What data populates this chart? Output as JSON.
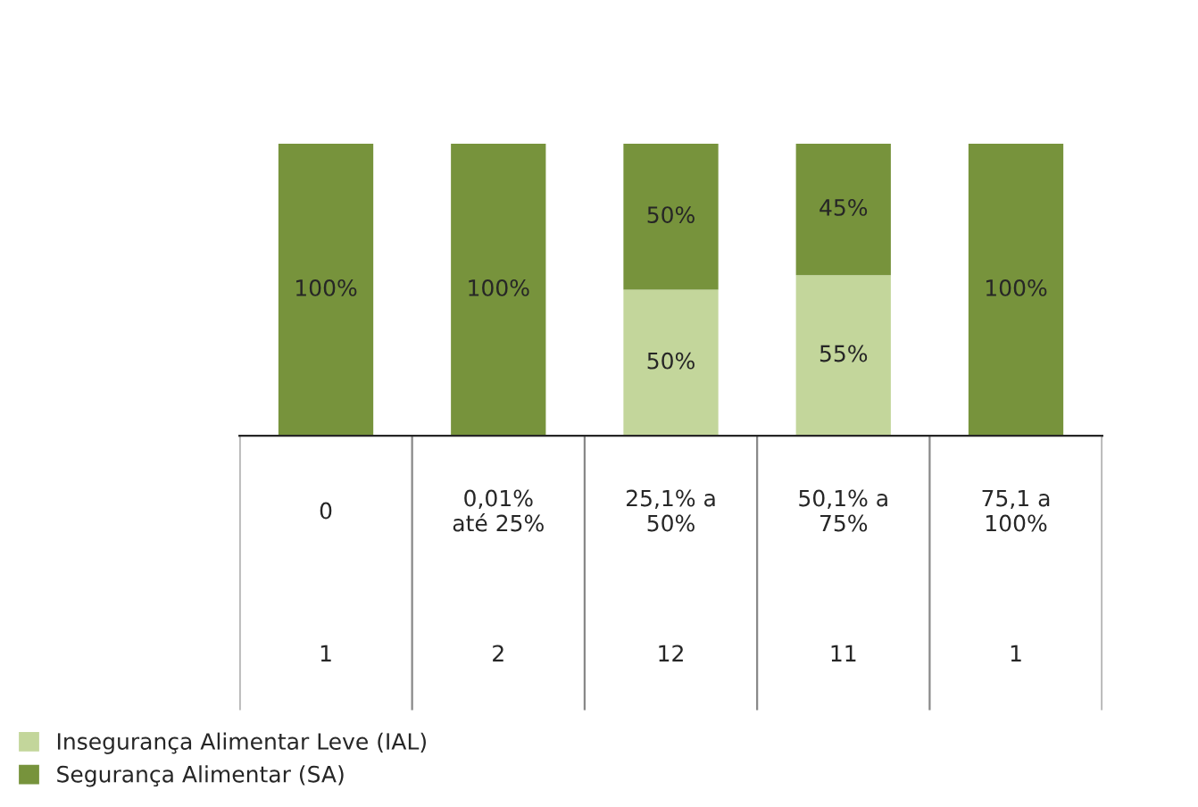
{
  "chart_data": {
    "type": "bar",
    "stacked": true,
    "categories": [
      "0",
      "0,01%\naté 25%",
      "25,1% a\n50%",
      "50,1% a\n75%",
      "75,1 a\n100%"
    ],
    "series": [
      {
        "name": "Insegurança Alimentar Leve (IAL)",
        "color": "#c3d69b",
        "values": [
          0,
          0,
          50,
          55,
          0
        ],
        "value_labels": [
          null,
          null,
          "50%",
          "55%",
          null
        ]
      },
      {
        "name": "Segurança Alimentar (SA)",
        "color": "#77933c",
        "values": [
          100,
          100,
          50,
          45,
          100
        ],
        "value_labels": [
          "100%",
          "100%",
          "50%",
          "45%",
          "100%"
        ]
      }
    ],
    "annotations": [
      "1",
      "2",
      "12",
      "11",
      "1"
    ],
    "legend": "bottom left"
  }
}
